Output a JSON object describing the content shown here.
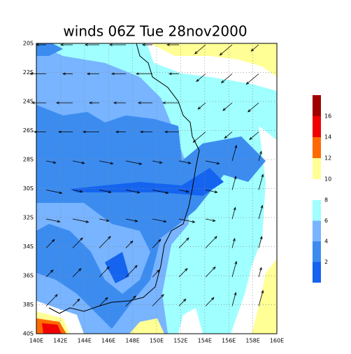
{
  "title": "winds 06Z Tue 28nov2000",
  "lat_labels": [
    "20S",
    "22S",
    "24S",
    "26S",
    "28S",
    "30S",
    "32S",
    "34S",
    "36S",
    "38S",
    "40S"
  ],
  "lon_labels": [
    "140E",
    "142E",
    "144E",
    "146E",
    "148E",
    "150E",
    "152E",
    "154E",
    "156E",
    "158E",
    "160E"
  ],
  "colorbar_upper": {
    "labels": [
      "16",
      "14",
      "12",
      "10"
    ],
    "colors": [
      "#a00000",
      "#f00000",
      "#ff6a00",
      "#ffff96"
    ]
  },
  "colorbar_lower": {
    "labels": [
      "8",
      "6",
      "4",
      "2"
    ],
    "colors": [
      "#a0ffff",
      "#78b4ff",
      "#3c8cf0",
      "#1464f0"
    ]
  }
}
